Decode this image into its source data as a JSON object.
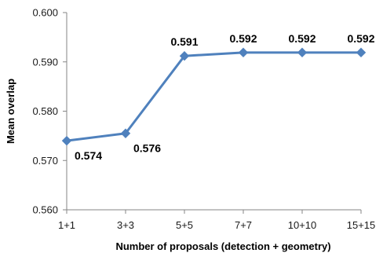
{
  "chart_data": {
    "type": "line",
    "title": "",
    "xlabel": "Number of proposals  (detection + geometry)",
    "ylabel": "Mean overlap",
    "categories": [
      "1+1",
      "3+3",
      "5+5",
      "7+7",
      "10+10",
      "15+15"
    ],
    "series": [
      {
        "values": [
          0.574,
          0.5755,
          0.5912,
          0.5919,
          0.5919,
          0.5919
        ],
        "data_labels": [
          "0.574",
          "0.576",
          "0.591",
          "0.592",
          "0.592",
          "0.592"
        ]
      }
    ],
    "ylim": [
      0.56,
      0.6
    ],
    "yticks": [
      0.56,
      0.57,
      0.58,
      0.59,
      0.6
    ],
    "ytick_labels": [
      "0.560",
      "0.570",
      "0.580",
      "0.590",
      "0.600"
    ],
    "grid": false,
    "legend": "none",
    "colors": {
      "line": "#4F81BD",
      "axis": "#868686"
    }
  }
}
